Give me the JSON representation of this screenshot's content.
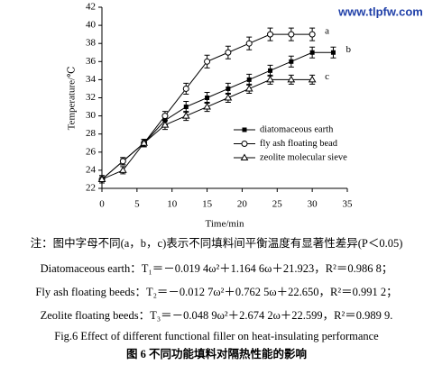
{
  "chart_data": {
    "type": "line",
    "xlabel": "Time/min",
    "ylabel": "Temperature/℃",
    "xlim": [
      0,
      35
    ],
    "xticks": [
      0,
      5,
      10,
      15,
      20,
      25,
      30,
      35
    ],
    "ylim": [
      22,
      42
    ],
    "yticks": [
      22,
      24,
      26,
      28,
      30,
      32,
      34,
      36,
      38,
      40,
      42
    ],
    "series": [
      {
        "name": "diatomaceous earth",
        "label": "b",
        "color": "#000000",
        "marker": "square",
        "x": [
          0,
          3,
          6,
          9,
          12,
          15,
          18,
          21,
          24,
          27,
          30,
          33
        ],
        "values": [
          23,
          25,
          27,
          29.5,
          31,
          32,
          33,
          34,
          35,
          36,
          37,
          37
        ],
        "errors": [
          0.4,
          0.4,
          0.4,
          0.5,
          0.6,
          0.6,
          0.6,
          0.6,
          0.6,
          0.6,
          0.6,
          0.6
        ]
      },
      {
        "name": "fly ash floating bead",
        "label": "a",
        "color": "#000000",
        "marker": "circle",
        "x": [
          0,
          3,
          6,
          9,
          12,
          15,
          18,
          21,
          24,
          27,
          30
        ],
        "values": [
          23,
          25,
          27,
          30,
          33,
          36,
          37,
          38,
          39,
          39,
          39
        ],
        "errors": [
          0.4,
          0.4,
          0.4,
          0.5,
          0.6,
          0.7,
          0.7,
          0.7,
          0.7,
          0.7,
          0.7
        ]
      },
      {
        "name": "zeolite molecular sieve",
        "label": "c",
        "color": "#000000",
        "marker": "triangle",
        "x": [
          0,
          3,
          6,
          9,
          12,
          15,
          18,
          21,
          24,
          27,
          30
        ],
        "values": [
          23,
          24,
          27,
          29,
          30,
          31,
          32,
          33,
          34,
          34,
          34
        ],
        "errors": [
          0.4,
          0.4,
          0.4,
          0.5,
          0.5,
          0.5,
          0.5,
          0.5,
          0.5,
          0.5,
          0.5
        ]
      }
    ]
  },
  "watermark": "www.tlpfw.com",
  "caption": {
    "note": "注：图中字母不同(a，b，c)表示不同填料间平衡温度有显著性差异(P＜0.05)",
    "equations": [
      "Diatomaceous earth：T₁＝－0.019 4ω²＋1.164 6ω＋21.923，R²＝0.986 8；",
      "Fly ash floating beeds：T₂＝－0.012 7ω²＋0.762 5ω＋22.650，R²＝0.991 2；",
      "Zeolite floating beeds：T₃＝－0.048 9ω²＋2.674 2ω＋22.599，R²＝0.989 9."
    ],
    "figure_en": "Fig.6   Effect of different functional filler on heat-insulating performance",
    "figure_zh": "图 6   不同功能填料对隔热性能的影响"
  }
}
